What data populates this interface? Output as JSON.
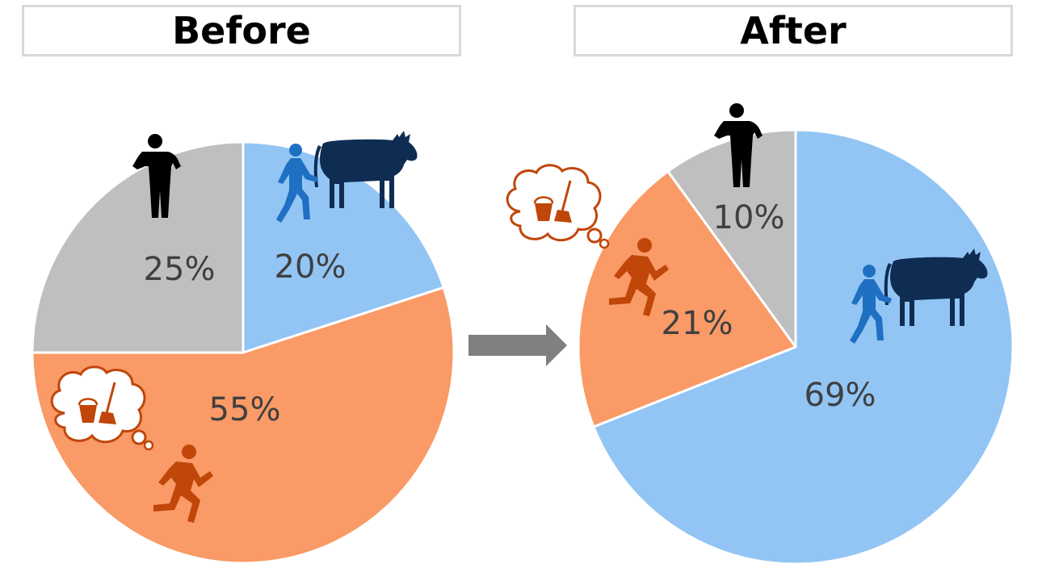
{
  "chart_data": [
    {
      "type": "pie",
      "title": "Before",
      "categories": [
        "cattle work",
        "absent from cleaning",
        "no activity"
      ],
      "values": [
        20,
        55,
        25
      ],
      "labels": [
        "20%",
        "55%",
        "25%"
      ],
      "colors": [
        "#92c5f4",
        "#fa9a66",
        "#bfbfbf"
      ],
      "icons": [
        "person-walking-cow-icon",
        "running-person-with-cleaning-thought-icon",
        "standing-person-icon"
      ]
    },
    {
      "type": "pie",
      "title": "After",
      "categories": [
        "cattle work",
        "absent from cleaning",
        "no activity"
      ],
      "values": [
        69,
        21,
        10
      ],
      "labels": [
        "69%",
        "21%",
        "10%"
      ],
      "colors": [
        "#92c5f4",
        "#fa9a66",
        "#bfbfbf"
      ],
      "icons": [
        "person-walking-cow-icon",
        "running-person-with-cleaning-thought-icon",
        "standing-person-icon"
      ]
    }
  ],
  "arrow": {
    "icon": "right-arrow-icon",
    "color": "#808080"
  },
  "icon_colors": {
    "cow": "#0f2d52",
    "walker": "#1f6fc2",
    "runner": "#c0460a",
    "standing": "#000000"
  }
}
